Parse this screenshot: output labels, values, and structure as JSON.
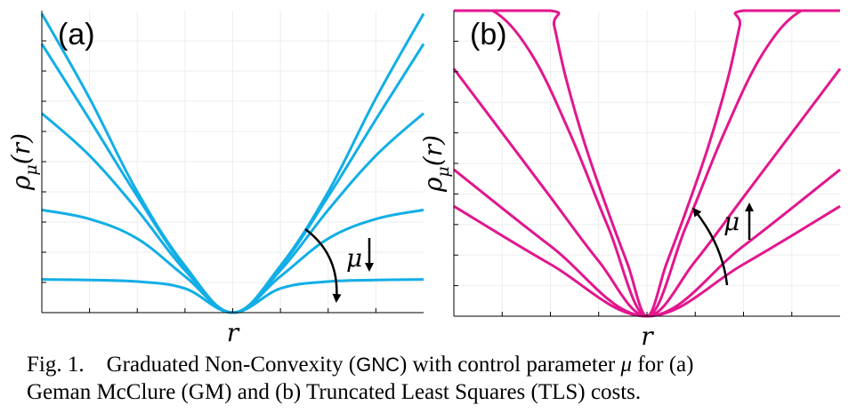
{
  "chart_data": [
    {
      "type": "line",
      "panel_label": "(a)",
      "name": "Geman McClure (GM)",
      "xlabel": "r",
      "ylabel": "ρμ(r)",
      "ylabel_base": "ρ",
      "ylabel_sub": "μ",
      "ylabel_arg": "(r)",
      "xlim": [
        -1,
        1
      ],
      "ylim": [
        0,
        1
      ],
      "grid": true,
      "color": "#12aee6",
      "annotation": "μ",
      "annotation_direction": "down",
      "series": [
        {
          "name": "mu-1",
          "x": [
            -1,
            -0.75,
            -0.5,
            -0.25,
            0,
            0.25,
            0.5,
            0.75,
            1
          ],
          "y": [
            0.11,
            0.108,
            0.103,
            0.08,
            0,
            0.08,
            0.103,
            0.108,
            0.11
          ]
        },
        {
          "name": "mu-2",
          "x": [
            -1,
            -0.75,
            -0.5,
            -0.25,
            0,
            0.25,
            0.5,
            0.75,
            1
          ],
          "y": [
            0.34,
            0.31,
            0.245,
            0.12,
            0,
            0.12,
            0.245,
            0.31,
            0.34
          ]
        },
        {
          "name": "mu-3",
          "x": [
            -1,
            -0.75,
            -0.5,
            -0.25,
            0,
            0.25,
            0.5,
            0.75,
            1
          ],
          "y": [
            0.66,
            0.52,
            0.34,
            0.14,
            0,
            0.14,
            0.34,
            0.52,
            0.66
          ]
        },
        {
          "name": "mu-4",
          "x": [
            -1,
            -0.75,
            -0.5,
            -0.25,
            0,
            0.25,
            0.5,
            0.75,
            1
          ],
          "y": [
            0.89,
            0.64,
            0.385,
            0.15,
            0,
            0.15,
            0.385,
            0.64,
            0.89
          ]
        },
        {
          "name": "mu-5",
          "x": [
            -1,
            -0.75,
            -0.5,
            -0.25,
            0,
            0.25,
            0.5,
            0.75,
            1
          ],
          "y": [
            0.99,
            0.71,
            0.4,
            0.155,
            0,
            0.155,
            0.4,
            0.71,
            0.99
          ]
        }
      ]
    },
    {
      "type": "line",
      "panel_label": "(b)",
      "name": "Truncated Least Squares (TLS)",
      "xlabel": "r",
      "ylabel": "ρμ(r)",
      "ylabel_base": "ρ",
      "ylabel_sub": "μ",
      "ylabel_arg": "(r)",
      "xlim": [
        -1,
        1
      ],
      "ylim": [
        0,
        1
      ],
      "grid": true,
      "color": "#e2168e",
      "annotation": "μ",
      "annotation_direction": "up",
      "series": [
        {
          "name": "mu-1",
          "x": [
            -1,
            -0.5,
            0,
            0.5,
            1
          ],
          "y": [
            0.36,
            0.17,
            0,
            0.17,
            0.36
          ]
        },
        {
          "name": "mu-2",
          "x": [
            -1,
            -0.5,
            0,
            0.5,
            1
          ],
          "y": [
            0.48,
            0.23,
            0,
            0.23,
            0.48
          ]
        },
        {
          "name": "mu-3",
          "x": [
            -1,
            -0.75,
            -0.5,
            -0.25,
            0,
            0.25,
            0.5,
            0.75,
            1
          ],
          "y": [
            0.81,
            0.6,
            0.39,
            0.18,
            0,
            0.18,
            0.39,
            0.6,
            0.81
          ]
        },
        {
          "name": "mu-4",
          "x": [
            -1,
            -0.8,
            -0.6,
            -0.4,
            -0.2,
            0,
            0.2,
            0.4,
            0.6,
            0.8,
            1
          ],
          "y": [
            1,
            1,
            0.86,
            0.6,
            0.29,
            0,
            0.29,
            0.6,
            0.86,
            1,
            1
          ]
        },
        {
          "name": "mu-5",
          "x": [
            -1,
            -0.5,
            -0.48,
            -0.42,
            -0.32,
            -0.2,
            -0.1,
            0,
            0.1,
            0.2,
            0.32,
            0.42,
            0.48,
            0.5,
            1
          ],
          "y": [
            1,
            1,
            0.95,
            0.78,
            0.56,
            0.34,
            0.17,
            0,
            0.17,
            0.34,
            0.56,
            0.78,
            0.95,
            1,
            1
          ]
        }
      ]
    }
  ],
  "caption": {
    "prefix": "Fig. 1.    Graduated Non-Convexity (",
    "abbr": "GNC",
    "line1_mid": ") with control parameter ",
    "mu": "μ",
    "line1_end": " for (a)",
    "line2": "Geman McClure (GM) and (b) Truncated Least Squares (TLS) costs."
  }
}
